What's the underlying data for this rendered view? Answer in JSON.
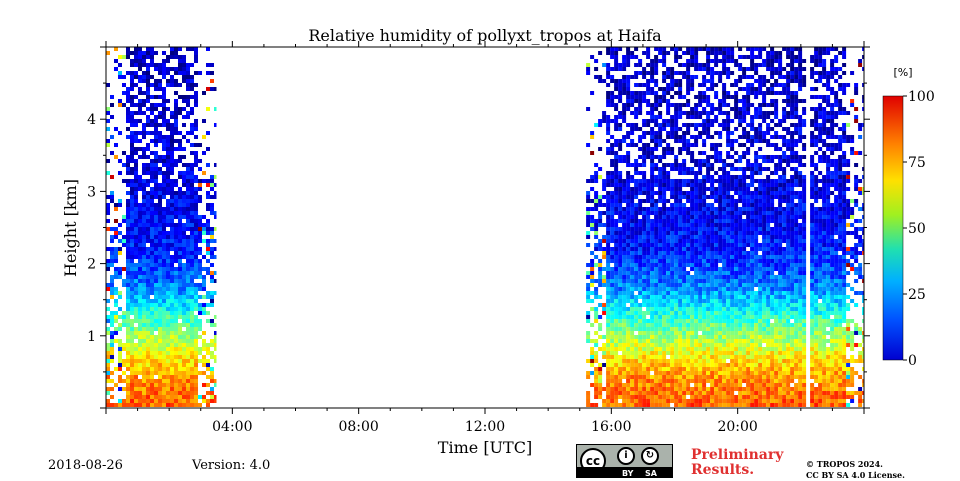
{
  "chart_data": {
    "type": "heatmap",
    "title": "Relative humidity of pollyxt_tropos at Haifa",
    "xlabel": "Time [UTC]",
    "ylabel": "Height [km]",
    "xlim_hours": [
      0,
      24
    ],
    "ylim_km": [
      0,
      5
    ],
    "x_ticks": [
      {
        "h": 4,
        "label": "04:00"
      },
      {
        "h": 8,
        "label": "08:00"
      },
      {
        "h": 12,
        "label": "12:00"
      },
      {
        "h": 16,
        "label": "16:00"
      },
      {
        "h": 20,
        "label": "20:00"
      }
    ],
    "y_ticks": [
      {
        "v": 1,
        "label": "1"
      },
      {
        "v": 2,
        "label": "2"
      },
      {
        "v": 3,
        "label": "3"
      },
      {
        "v": 4,
        "label": "4"
      }
    ],
    "colorbar": {
      "unit": "[%]",
      "range": [
        0,
        100
      ],
      "ticks": [
        {
          "v": 0,
          "label": "0"
        },
        {
          "v": 25,
          "label": "25"
        },
        {
          "v": 50,
          "label": "50"
        },
        {
          "v": 75,
          "label": "75"
        },
        {
          "v": 100,
          "label": "100"
        }
      ],
      "colormap": "jet"
    },
    "data_segments_hours": [
      [
        0,
        3.5
      ],
      [
        15.2,
        24
      ]
    ],
    "gaps_hours": [
      [
        22.05,
        22.2
      ]
    ],
    "rh_profile_percent": [
      {
        "height_km": 0.1,
        "rh": 78
      },
      {
        "height_km": 0.5,
        "rh": 72
      },
      {
        "height_km": 0.9,
        "rh": 58
      },
      {
        "height_km": 1.3,
        "rh": 42
      },
      {
        "height_km": 1.7,
        "rh": 25
      },
      {
        "height_km": 2.2,
        "rh": 15
      },
      {
        "height_km": 3.0,
        "rh": 10
      },
      {
        "height_km": 4.0,
        "rh": 8
      },
      {
        "height_km": 5.0,
        "rh": 6
      }
    ]
  },
  "footer": {
    "date": "2018-08-26",
    "version": "Version: 4.0",
    "preliminary_line1": "Preliminary",
    "preliminary_line2": "Results.",
    "copyright_line1": "© TROPOS 2024.",
    "copyright_line2": "CC BY SA 4.0 License.",
    "license_by": "BY",
    "license_sa": "SA"
  }
}
